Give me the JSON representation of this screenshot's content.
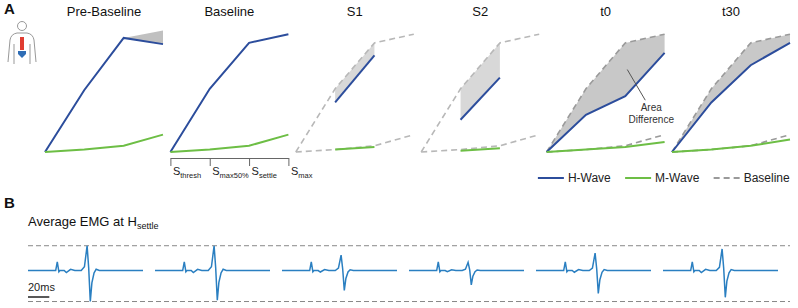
{
  "panel_labels": [
    "A",
    "B"
  ],
  "chart_data": [
    {
      "type": "line",
      "title": "Pre-Baseline",
      "categories": [
        "Sthresh",
        "Smax50%",
        "Ssettle",
        "Smax"
      ],
      "ylim": [
        0,
        1
      ],
      "tick_labels": false,
      "series": [
        {
          "color": "#2c4d9c",
          "values": [
            0,
            0.5,
            0.92,
            0.87
          ]
        },
        {
          "color": "#6dbe45",
          "values": [
            0,
            0.02,
            0.05,
            0.14
          ]
        },
        {
          "type": "band",
          "color": "#8c8c8c",
          "line_style": "none",
          "values": [
            0,
            0.5,
            0.92,
            0.98
          ]
        }
      ]
    },
    {
      "type": "line",
      "title": "Baseline",
      "categories": [
        "Sthresh",
        "Smax50%",
        "Ssettle",
        "Smax"
      ],
      "ylim": [
        0,
        1
      ],
      "tick_labels": "x",
      "series": [
        {
          "color": "#2c4d9c",
          "values": [
            0,
            0.51,
            0.88,
            0.95
          ]
        },
        {
          "color": "#6dbe45",
          "values": [
            0,
            0.02,
            0.05,
            0.14
          ]
        }
      ]
    },
    {
      "type": "line",
      "title": "S1",
      "categories": [
        "Sthresh",
        "Smax50%",
        "Ssettle",
        "Smax"
      ],
      "ylim": [
        0,
        1
      ],
      "tick_labels": false,
      "series": [
        {
          "color": "#2c4d9c",
          "values": [
            null,
            0.4,
            0.78,
            null
          ]
        },
        {
          "color": "#6dbe45",
          "values": [
            null,
            0.02,
            0.04,
            null
          ]
        },
        {
          "type": "band",
          "color": "#b8b8b8",
          "line_style": "dashed",
          "values": [
            0,
            0.51,
            0.88,
            0.95
          ]
        },
        {
          "color": "#b8b8b8",
          "line_style": "dashed",
          "values": [
            0,
            0.02,
            0.05,
            0.14
          ]
        }
      ]
    },
    {
      "type": "line",
      "title": "S2",
      "categories": [
        "Sthresh",
        "Smax50%",
        "Ssettle",
        "Smax"
      ],
      "ylim": [
        0,
        1
      ],
      "tick_labels": false,
      "series": [
        {
          "color": "#2c4d9c",
          "values": [
            null,
            0.26,
            0.6,
            null
          ]
        },
        {
          "color": "#6dbe45",
          "values": [
            null,
            0.01,
            0.03,
            null
          ]
        },
        {
          "type": "band",
          "color": "#b8b8b8",
          "line_style": "dashed",
          "values": [
            0,
            0.51,
            0.88,
            0.95
          ]
        },
        {
          "color": "#b8b8b8",
          "line_style": "dashed",
          "values": [
            0,
            0.02,
            0.05,
            0.14
          ]
        }
      ]
    },
    {
      "type": "line",
      "title": "t0",
      "categories": [
        "Sthresh",
        "Smax50%",
        "Ssettle",
        "Smax"
      ],
      "ylim": [
        0,
        1
      ],
      "tick_labels": false,
      "annotations": [
        {
          "text": "Area Difference"
        }
      ],
      "series": [
        {
          "color": "#2c4d9c",
          "values": [
            0,
            0.3,
            0.45,
            0.8
          ]
        },
        {
          "color": "#6dbe45",
          "values": [
            0,
            0.02,
            0.04,
            0.08
          ]
        },
        {
          "type": "band",
          "color": "#9a9a9a",
          "line_style": "dashed",
          "values": [
            0,
            0.51,
            0.88,
            0.95
          ]
        },
        {
          "color": "#9a9a9a",
          "line_style": "dashed",
          "values": [
            0,
            0.02,
            0.05,
            0.14
          ]
        }
      ]
    },
    {
      "type": "line",
      "title": "t30",
      "categories": [
        "Sthresh",
        "Smax50%",
        "Ssettle",
        "Smax"
      ],
      "ylim": [
        0,
        1
      ],
      "tick_labels": false,
      "legend": "bottom right",
      "series": [
        {
          "name": "H-Wave",
          "color": "#2c4d9c",
          "values": [
            0,
            0.4,
            0.7,
            0.88
          ]
        },
        {
          "name": "M-Wave",
          "color": "#6dbe45",
          "values": [
            0,
            0.02,
            0.05,
            0.1
          ]
        },
        {
          "name": "Baseline",
          "type": "band",
          "color": "#9a9a9a",
          "line_style": "dashed",
          "values": [
            0,
            0.51,
            0.88,
            0.95
          ]
        },
        {
          "color": "#9a9a9a",
          "line_style": "dashed",
          "values": [
            0,
            0.02,
            0.05,
            0.14
          ]
        }
      ]
    },
    {
      "type": "line",
      "title": "Average EMG at Hsettle",
      "tick_labels": false,
      "x": [
        0,
        26,
        27.5,
        29,
        30,
        34,
        36,
        40,
        44,
        50,
        53,
        55.5,
        57,
        58.5,
        60,
        62,
        64,
        67,
        72,
        108
      ],
      "xlim": [
        0,
        108
      ],
      "ylim": [
        -1.35,
        1.15
      ],
      "reference_lines": [
        1,
        -1.25
      ],
      "scale_bar": {
        "value": 20,
        "label": "20ms"
      },
      "series": [
        {
          "color": "#2a7fc1",
          "values": [
            0,
            0,
            0.35,
            -0.05,
            0,
            0,
            -0.08,
            0.05,
            0,
            0,
            0.15,
            1.0,
            0.1,
            -1.25,
            -0.5,
            -0.1,
            0.05,
            0,
            0,
            0
          ]
        },
        {
          "color": "#2a7fc1",
          "values": [
            0,
            0,
            0.35,
            -0.05,
            0,
            0,
            -0.08,
            0.05,
            0,
            0,
            0.15,
            1.0,
            0.1,
            -1.2,
            -0.48,
            -0.1,
            0.05,
            0,
            0,
            0
          ]
        },
        {
          "color": "#2a7fc1",
          "values": [
            0,
            0,
            0.35,
            -0.05,
            0,
            0,
            -0.06,
            0.04,
            0,
            0,
            0.1,
            0.62,
            0.06,
            -0.8,
            -0.32,
            -0.06,
            0.03,
            0,
            0,
            0
          ]
        },
        {
          "color": "#2a7fc1",
          "values": [
            0,
            0,
            0.35,
            -0.05,
            0,
            0,
            -0.05,
            0.03,
            0,
            0,
            0.05,
            0.33,
            0.03,
            -0.58,
            -0.23,
            -0.05,
            0.02,
            0,
            0,
            0
          ]
        },
        {
          "color": "#2a7fc1",
          "values": [
            0,
            0,
            0.35,
            -0.05,
            0,
            0,
            -0.07,
            0.04,
            0,
            0,
            0.1,
            0.7,
            0.07,
            -0.92,
            -0.37,
            -0.07,
            0.04,
            0,
            0,
            0
          ]
        },
        {
          "color": "#2a7fc1",
          "values": [
            0,
            0,
            0.35,
            -0.05,
            0,
            0,
            -0.08,
            0.05,
            0,
            0,
            0.13,
            0.87,
            0.09,
            -1.08,
            -0.43,
            -0.09,
            0.04,
            0,
            0,
            0
          ]
        }
      ]
    }
  ]
}
